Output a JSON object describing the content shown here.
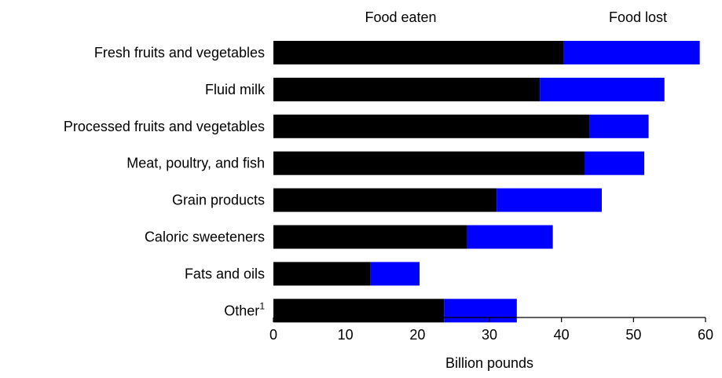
{
  "chart_data": {
    "type": "bar",
    "orientation": "horizontal",
    "stacked": true,
    "categories": [
      "Fresh fruits and vegetables",
      "Fluid milk",
      "Processed fruits and vegetables",
      "Meat, poultry, and fish",
      "Grain products",
      "Caloric sweeteners",
      "Fats and oils",
      "Other"
    ],
    "category_footnote": {
      "index": 7,
      "mark": "1"
    },
    "series": [
      {
        "name": "Food eaten",
        "color": "#000000",
        "values": [
          40.3,
          37.0,
          43.9,
          43.2,
          31.0,
          26.9,
          13.5,
          23.7
        ]
      },
      {
        "name": "Food lost",
        "color": "#0000ff",
        "values": [
          18.9,
          17.3,
          8.2,
          8.3,
          14.6,
          11.9,
          6.8,
          10.1
        ]
      }
    ],
    "xlabel": "Billion pounds",
    "xlim": [
      0,
      60
    ],
    "xticks": [
      0,
      10,
      20,
      30,
      40,
      50,
      60
    ],
    "grid": false,
    "legend_placement": "top, above bars"
  }
}
